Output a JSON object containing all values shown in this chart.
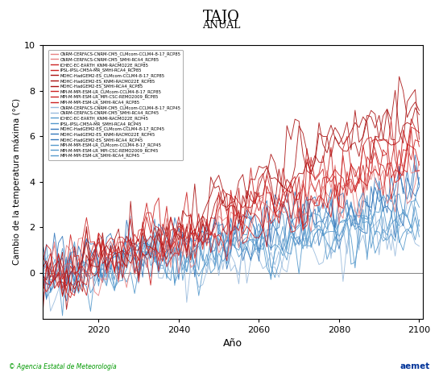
{
  "title": "TAJO",
  "subtitle": "ANUAL",
  "ylabel": "Cambio de la temperatura máxima (°C)",
  "xlabel": "Año",
  "xlim": [
    2006,
    2101
  ],
  "ylim": [
    -2,
    10
  ],
  "yticks": [
    0,
    2,
    4,
    6,
    8,
    10
  ],
  "xticks": [
    2020,
    2040,
    2060,
    2080,
    2100
  ],
  "rcp85_colors": [
    "#E88080",
    "#E88080",
    "#CC2222",
    "#CC2222",
    "#AA1111",
    "#AA1111",
    "#AA1111",
    "#CC2222",
    "#CC2222",
    "#CC2222"
  ],
  "rcp45_colors": [
    "#99BBDD",
    "#99BBDD",
    "#5599CC",
    "#5599CC",
    "#3377BB",
    "#3377BB",
    "#3377BB",
    "#5599CC",
    "#5599CC",
    "#5599CC"
  ],
  "legend_rcp85": [
    "CNRM-CERFACS-CNRM-CM5_CLMcom-CCLM4-8-17_RCP85",
    "CNRM-CERFACS-CNRM-CM5_SMHI-RCA4_RCP85",
    "ICHEC-EC-EARTH_KNMI-RACMO22E_RCP85",
    "IPSL-IPSL-CM5A-MR_SMHI-RCA4_RCP85",
    "MOHC-HadGEM2-ES_CLMcom-CCLM4-8-17_RCP85",
    "MOHC-HadGEM2-ES_KNMI-RACMO22E_RCP85",
    "MOHC-HadGEM2-ES_SMHI-RCA4_RCP85",
    "MPI-M-MPI-ESM-LR_CLMcom-CCLM4-8-17_RCP85",
    "MPI-M-MPI-ESM-LR_MPI-CSC-REMO2009_RCP85",
    "MPI-M-MPI-ESM-LR_SMHI-RCA4_RCP85"
  ],
  "legend_rcp45": [
    "CNRM-CERFACS-CNRM-CM5_CLMcom-CCLM4-8-17_RCP45",
    "CNRM-CERFACS-CNRM-CM5_SMHI-RCA4_RCP45",
    "ICHEC-EC-EARTH_KNMI-RACMO22E_RCP45",
    "IPSL-IPSL-CM5A-MR_SMHI-RCA4_RCP45",
    "MOHC-HadGEM2-ES_CLMcom-CCLM4-8-17_RCP45",
    "MOHC-HadGEM2-ES_KNMI-RACMO22E_RCP45",
    "MOHC-HadGEM2-ES_SMHI-RCA4_RCP45",
    "MPI-M-MPI-ESM-LR_CLMcom-CCLM4-8-17_RCP45",
    "MPI-M-MPI-ESM-LR_MPI-CSC-REMO2009_RCP45",
    "MPI-M-MPI-ESM-LR_SMHI-RCA4_RCP45"
  ],
  "rcp85_trends": [
    4.8,
    4.5,
    5.5,
    5.8,
    7.5,
    7.0,
    8.0,
    5.0,
    5.5,
    5.5
  ],
  "rcp45_trends": [
    2.2,
    2.0,
    2.8,
    2.5,
    3.8,
    3.5,
    4.0,
    2.4,
    2.6,
    2.8
  ],
  "background_color": "#FFFFFF",
  "footer_left": "© Agencia Estatal de Meteorología",
  "footer_right": "aemet"
}
